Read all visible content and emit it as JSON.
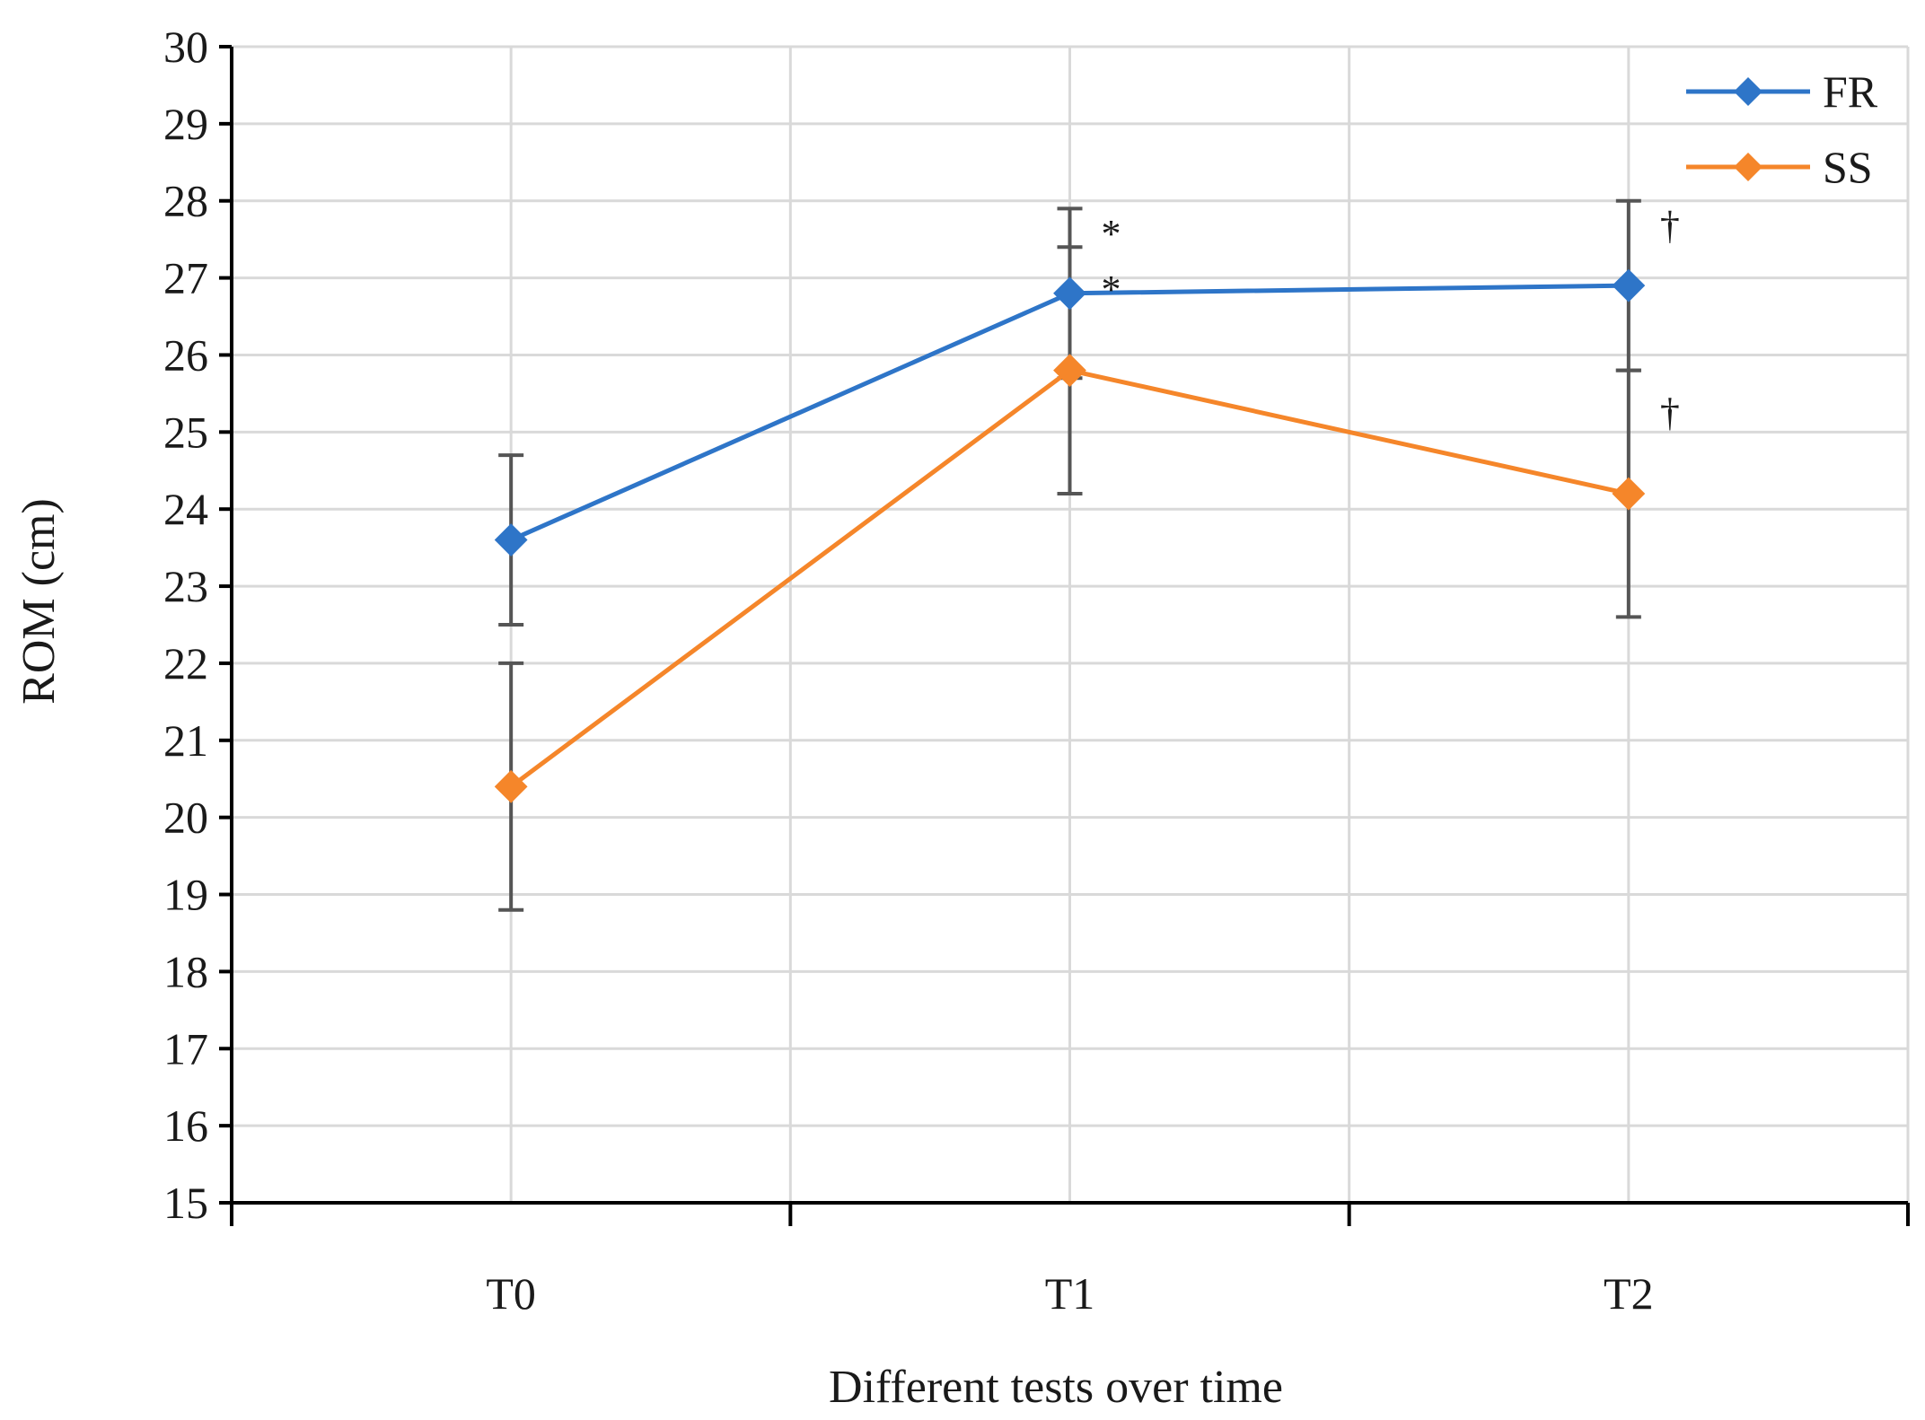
{
  "chart_data": {
    "type": "line",
    "title": "",
    "xlabel": "Different tests over time",
    "ylabel": "ROM (cm)",
    "categories": [
      "T0",
      "T1",
      "T2"
    ],
    "ylim": [
      15,
      30
    ],
    "ytick_step": 1,
    "grid": true,
    "legend_position": "top-right",
    "series": [
      {
        "name": "FR",
        "color": "#2E75C8",
        "values": [
          23.6,
          26.8,
          26.9
        ],
        "errors": [
          1.1,
          1.1,
          1.1
        ],
        "annotations": [
          "",
          "*",
          "†"
        ]
      },
      {
        "name": "SS",
        "color": "#F5862A",
        "values": [
          20.4,
          25.8,
          24.2
        ],
        "errors": [
          1.6,
          1.6,
          1.6
        ],
        "annotations": [
          "",
          "*",
          "†"
        ]
      }
    ],
    "error_bar_color": "#555555"
  }
}
